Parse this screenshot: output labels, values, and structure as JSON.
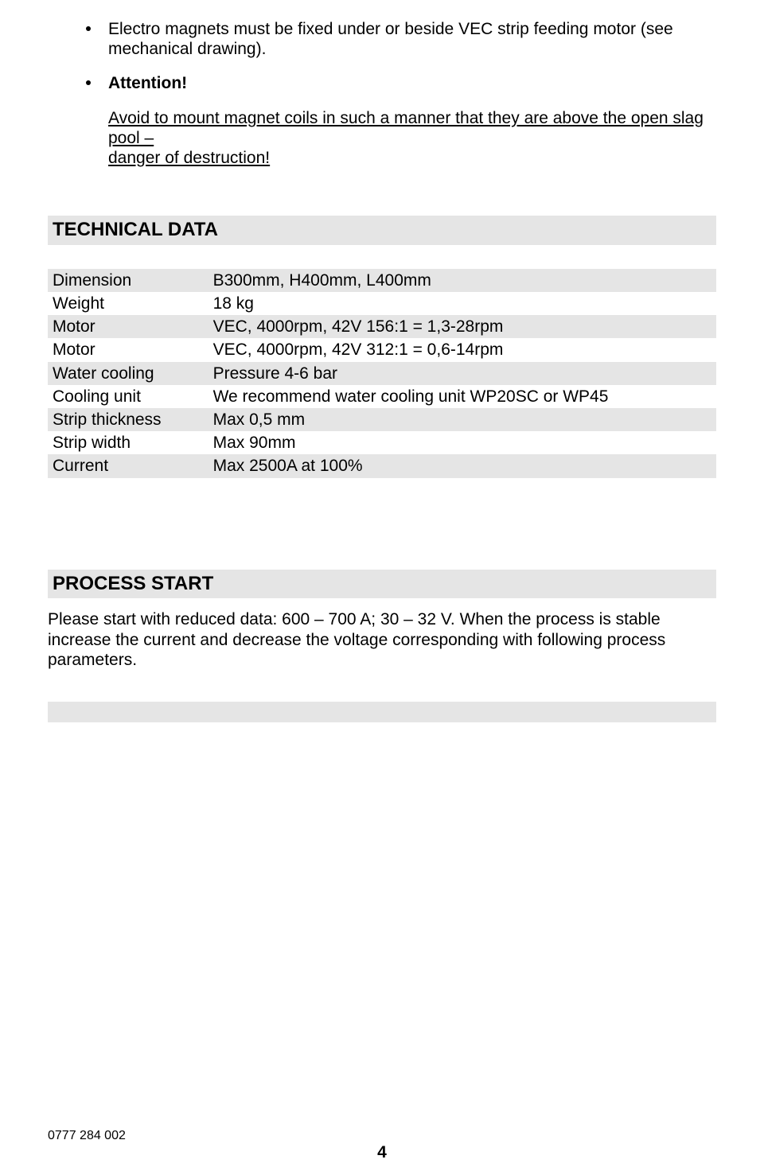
{
  "bullets": {
    "b1": "Electro magnets must be fixed under or beside VEC strip feeding motor (see mechanical drawing).",
    "b2": "Attention!",
    "b3a": "Avoid to mount magnet coils in such a manner that they are above the open slag pool –",
    "b3b": "danger of destruction!"
  },
  "sections": {
    "technical_data": "TECHNICAL DATA",
    "process_start": "PROCESS START"
  },
  "spec": {
    "rows": [
      {
        "label": "Dimension",
        "value": "B300mm, H400mm, L400mm"
      },
      {
        "label": "Weight",
        "value": "18 kg"
      },
      {
        "label": "Motor",
        "value": "VEC, 4000rpm, 42V 156:1 = 1,3-28rpm"
      },
      {
        "label": "Motor",
        "value": "VEC, 4000rpm, 42V 312:1 = 0,6-14rpm"
      },
      {
        "label": "Water cooling",
        "value": "Pressure 4-6 bar"
      },
      {
        "label": "Cooling unit",
        "value": "We recommend water cooling unit WP20SC or WP45"
      },
      {
        "label": "Strip thickness",
        "value": "Max 0,5 mm"
      },
      {
        "label": "Strip width",
        "value": "Max 90mm"
      },
      {
        "label": "Current",
        "value": "Max 2500A at 100%"
      }
    ]
  },
  "process_text": "Please start with reduced data: 600 – 700 A; 30 – 32 V. When the process is stable increase the current and decrease the voltage corresponding with following process parameters.",
  "footer": {
    "code": "0777 284 002",
    "page": "4"
  }
}
